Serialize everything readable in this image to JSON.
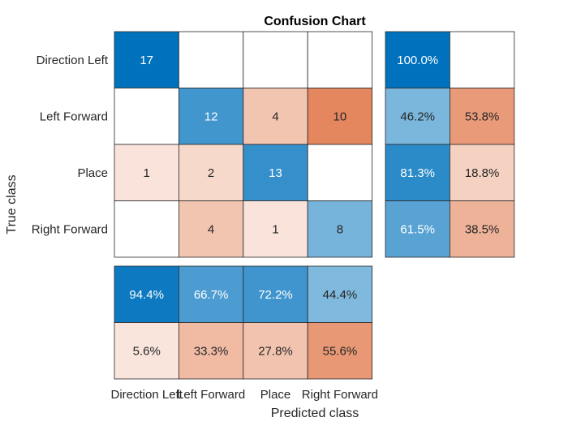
{
  "chart_data": {
    "type": "heatmap",
    "title": "Confusion Chart",
    "xlabel": "Predicted class",
    "ylabel": "True class",
    "classes": [
      "Direction Left",
      "Left Forward",
      "Place",
      "Right Forward"
    ],
    "matrix": [
      [
        17,
        null,
        null,
        null
      ],
      [
        null,
        12,
        4,
        10
      ],
      [
        1,
        2,
        13,
        null
      ],
      [
        null,
        4,
        1,
        8
      ]
    ],
    "row_summary": [
      [
        "100.0%",
        ""
      ],
      [
        "46.2%",
        "53.8%"
      ],
      [
        "81.3%",
        "18.8%"
      ],
      [
        "61.5%",
        "38.5%"
      ]
    ],
    "row_summary_values": [
      [
        100.0,
        0
      ],
      [
        46.2,
        53.8
      ],
      [
        81.3,
        18.8
      ],
      [
        61.5,
        38.5
      ]
    ],
    "column_summary": [
      [
        "94.4%",
        "66.7%",
        "72.2%",
        "44.4%"
      ],
      [
        "5.6%",
        "33.3%",
        "27.8%",
        "55.6%"
      ]
    ],
    "column_summary_values": [
      [
        94.4,
        66.7,
        72.2,
        44.4
      ],
      [
        5.6,
        33.3,
        27.8,
        55.6
      ]
    ],
    "colors": {
      "correct_max": "#0072BD",
      "incorrect_max": "#D95319",
      "grid": "#262626",
      "background": "#ffffff"
    }
  }
}
